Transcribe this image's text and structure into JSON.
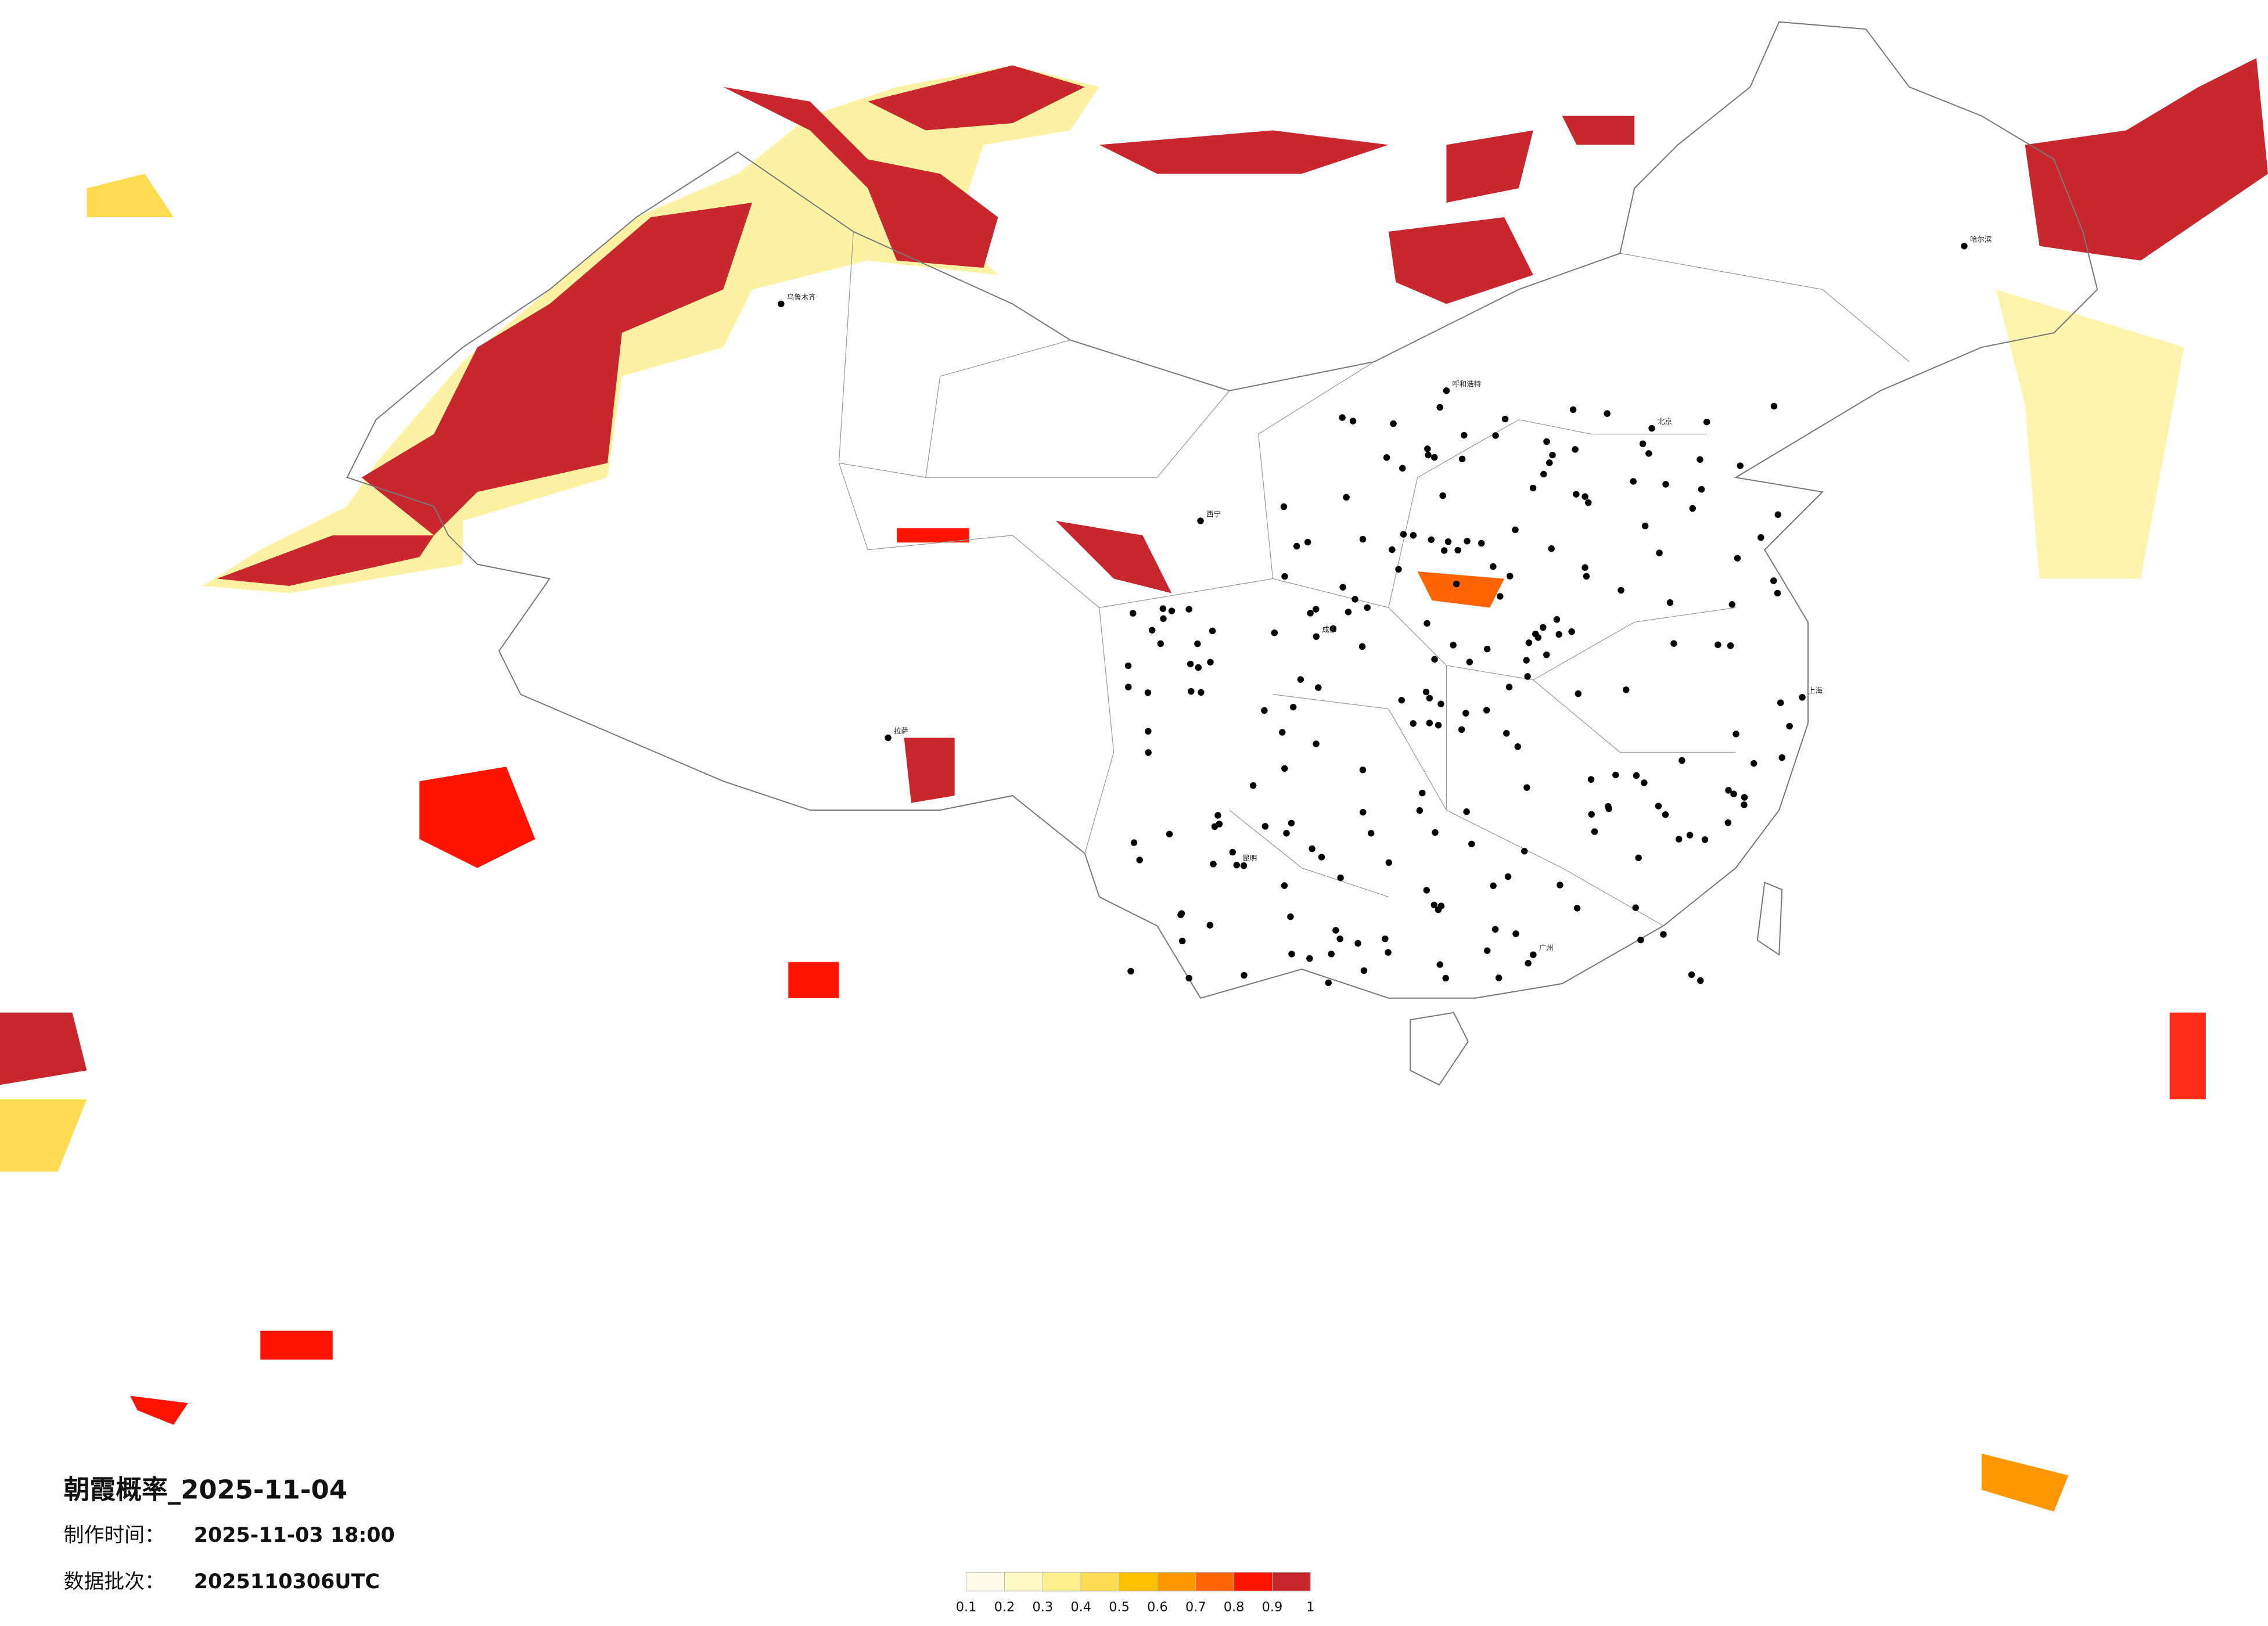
{
  "title": "朝霞概率_2025-11-04",
  "production_time": {
    "label": "制作时间：",
    "value": "2025-11-03 18:00"
  },
  "batch": {
    "label": "数据批次：",
    "value": "2025110306UTC"
  },
  "legend": {
    "ticks": [
      0.1,
      0.2,
      0.3,
      0.4,
      0.5,
      0.6,
      0.7,
      0.8,
      0.9,
      1
    ],
    "colors": [
      "#fffde8",
      "#fffac4",
      "#fff08c",
      "#ffdc50",
      "#ffc000",
      "#ff9800",
      "#ff6400",
      "#ff1400",
      "#c8282d"
    ]
  },
  "cities": [
    {
      "name": "北京"
    },
    {
      "name": "上海"
    },
    {
      "name": "广州"
    },
    {
      "name": "成都"
    },
    {
      "name": "哈尔滨"
    },
    {
      "name": "乌鲁木齐"
    },
    {
      "name": "拉萨"
    },
    {
      "name": "西宁"
    },
    {
      "name": "呼和浩特"
    },
    {
      "name": "昆明"
    }
  ]
}
